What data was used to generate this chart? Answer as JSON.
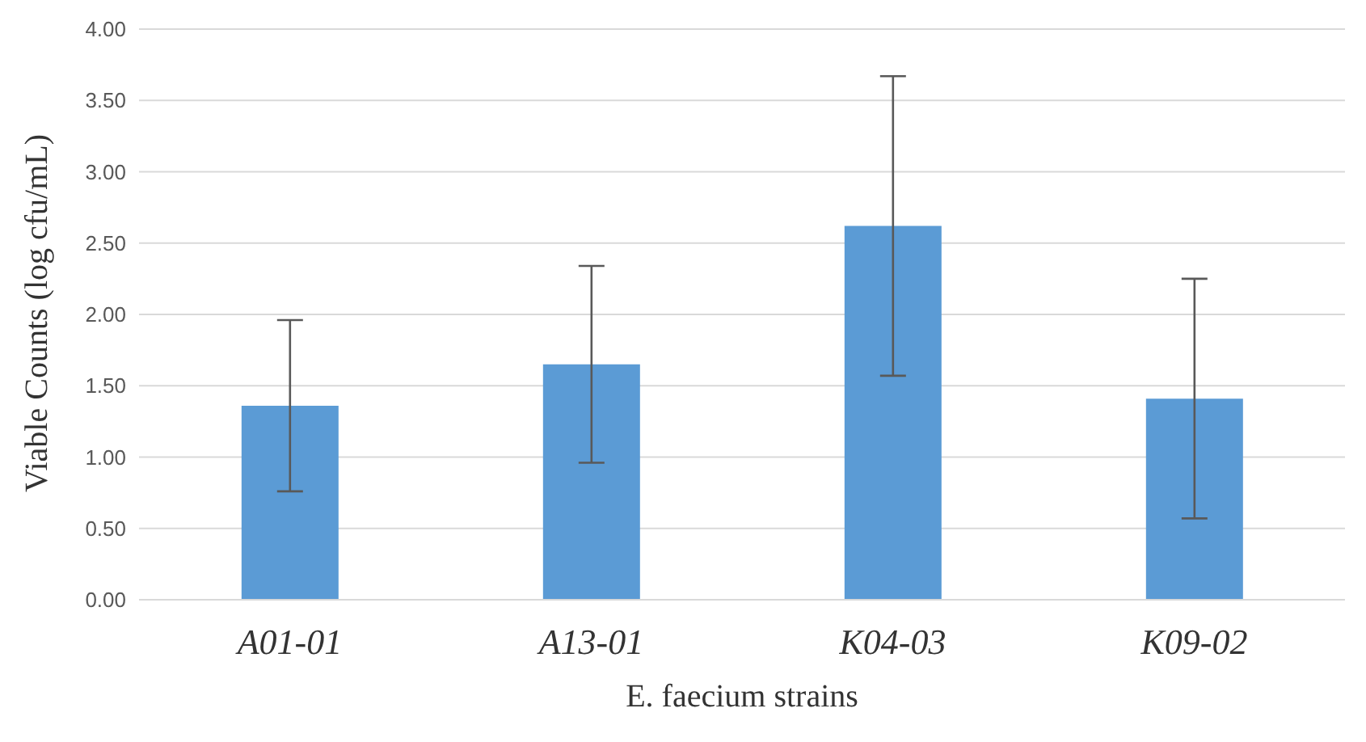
{
  "chart_data": {
    "type": "bar",
    "xlabel": "E. faecium strains",
    "ylabel": "Viable Counts (log cfu/mL)",
    "categories": [
      "A01-01",
      "A13-01",
      "K04-03",
      "K09-02"
    ],
    "values": [
      1.36,
      1.65,
      2.62,
      1.41
    ],
    "errors": [
      0.6,
      0.69,
      1.05,
      0.84
    ],
    "color": "#5b9bd5",
    "ylim": [
      0,
      4
    ],
    "yticks": [
      {
        "value": 0,
        "label": "0.00"
      },
      {
        "value": 0.5,
        "label": "0.50"
      },
      {
        "value": 1,
        "label": "1.00"
      },
      {
        "value": 1.5,
        "label": "1.50"
      },
      {
        "value": 2,
        "label": "2.00"
      },
      {
        "value": 2.5,
        "label": "2.50"
      },
      {
        "value": 3,
        "label": "3.00"
      },
      {
        "value": 3.5,
        "label": "3.50"
      },
      {
        "value": 4,
        "label": "4.00"
      }
    ],
    "grid": "y"
  }
}
